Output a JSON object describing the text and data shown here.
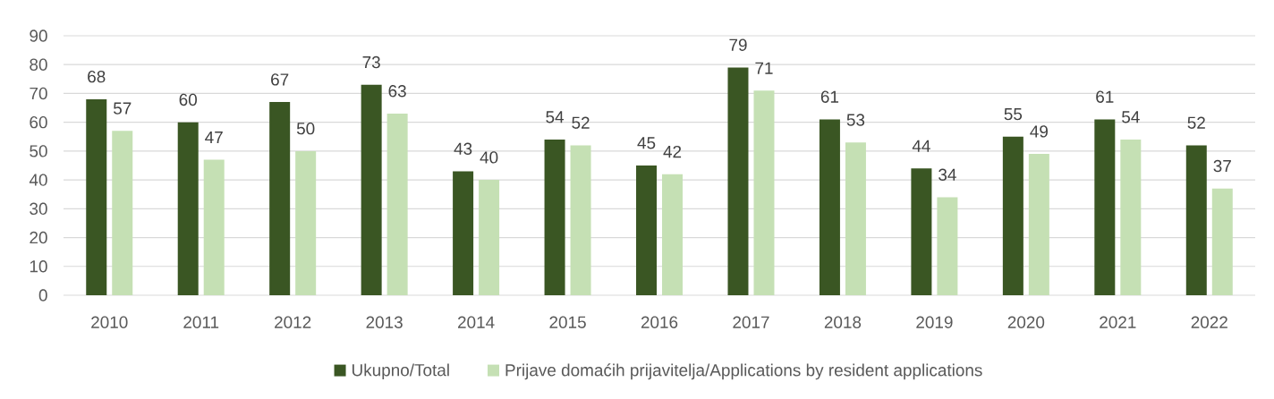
{
  "chart_data": {
    "type": "bar",
    "categories": [
      "2010",
      "2011",
      "2012",
      "2013",
      "2014",
      "2015",
      "2016",
      "2017",
      "2018",
      "2019",
      "2020",
      "2021",
      "2022"
    ],
    "series": [
      {
        "name": "Ukupno/Total",
        "color": "#3a5623",
        "values": [
          68,
          60,
          67,
          73,
          43,
          54,
          45,
          79,
          61,
          44,
          55,
          61,
          52
        ]
      },
      {
        "name": "Prijave domaćih prijavitelja/Applications by resident applications",
        "color": "#c5e0b4",
        "values": [
          57,
          47,
          50,
          63,
          40,
          52,
          42,
          71,
          53,
          34,
          49,
          54,
          37
        ]
      }
    ],
    "ylim": [
      0,
      90
    ],
    "yticks": [
      0,
      10,
      20,
      30,
      40,
      50,
      60,
      70,
      80,
      90
    ],
    "grid": "y",
    "legend": "bottom",
    "data_labels": true
  }
}
